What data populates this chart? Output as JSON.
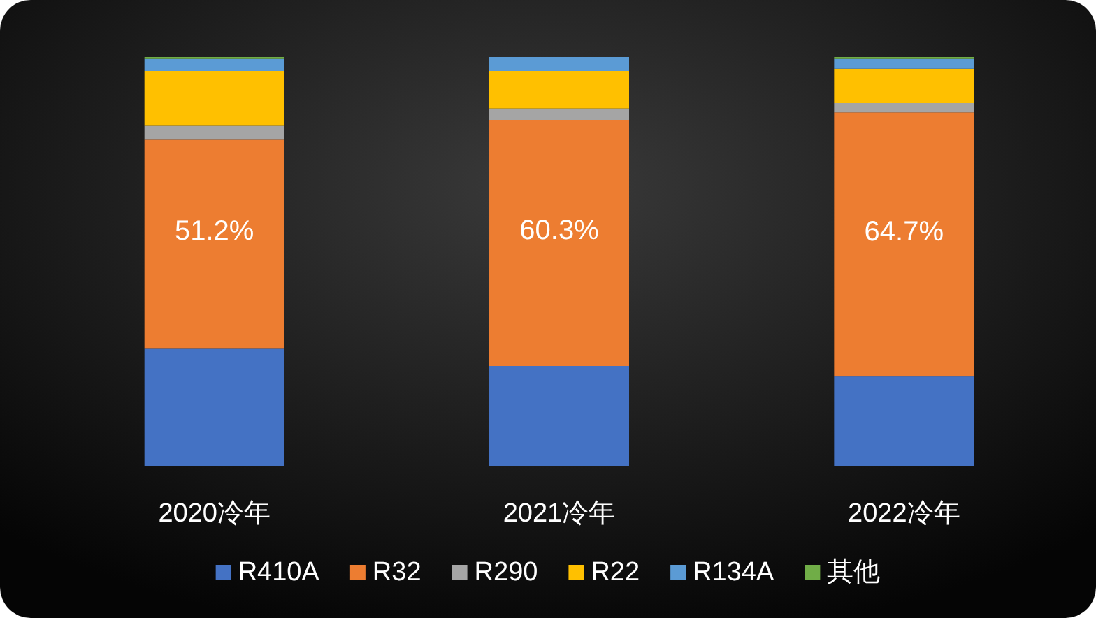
{
  "chart_data": {
    "type": "bar",
    "stacked": true,
    "legend": "bottom",
    "grid": false,
    "categories": [
      "2020冷年",
      "2021冷年",
      "2022冷年"
    ],
    "series": [
      {
        "name": "R410A",
        "color": "#4472c4",
        "values": [
          28.7,
          24.4,
          21.9
        ]
      },
      {
        "name": "R32",
        "color": "#ed7d31",
        "values": [
          51.2,
          60.3,
          64.7
        ],
        "value_labels": [
          "51.2%",
          "60.3%",
          "64.7%"
        ]
      },
      {
        "name": "R290",
        "color": "#a5a5a5",
        "values": [
          3.4,
          2.7,
          2.1
        ]
      },
      {
        "name": "R22",
        "color": "#ffc000",
        "values": [
          13.4,
          9.2,
          8.6
        ]
      },
      {
        "name": "R134A",
        "color": "#5b9bd5",
        "values": [
          3.0,
          3.4,
          2.4
        ]
      },
      {
        "name": "其他",
        "color": "#70ad47",
        "values": [
          0.3,
          0,
          0.3
        ]
      }
    ]
  }
}
